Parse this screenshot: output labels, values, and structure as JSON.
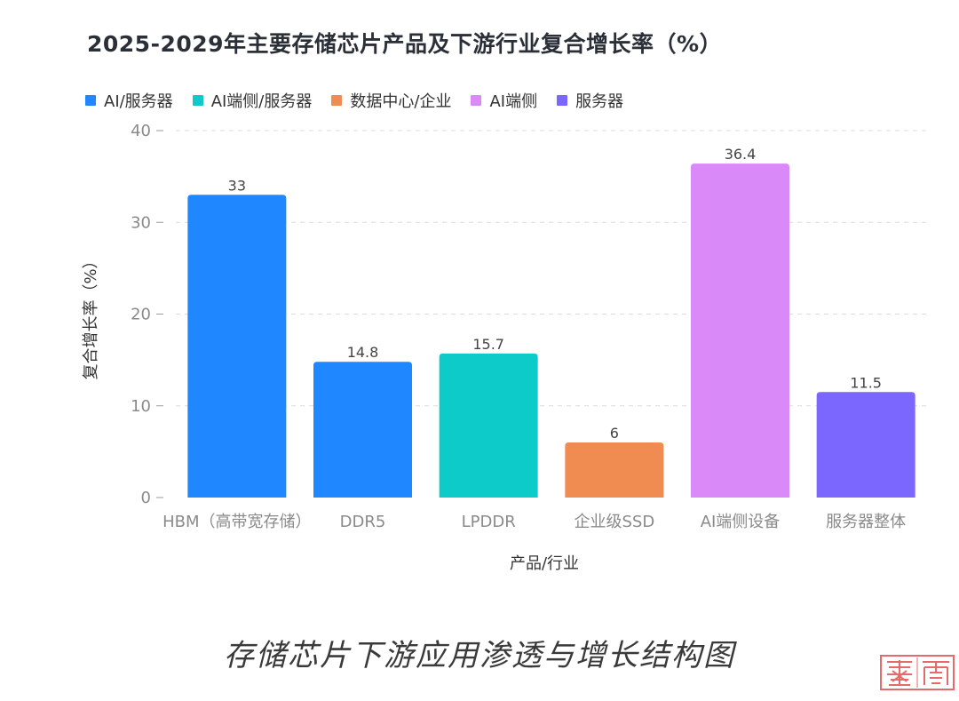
{
  "chart_data": {
    "type": "bar",
    "title": "2025-2029年主要存储芯片产品及下游行业复合增长率（%）",
    "xlabel": "产品/行业",
    "ylabel": "复合增长率（%）",
    "ylim": [
      0,
      40
    ],
    "yticks": [
      0,
      10,
      20,
      30,
      40
    ],
    "grid": true,
    "legend_position": "top-left",
    "categories": [
      "HBM（高带宽存储）",
      "DDR5",
      "LPDDR",
      "企业级SSD",
      "AI端侧设备",
      "服务器整体"
    ],
    "values": [
      33,
      14.8,
      15.7,
      6,
      36.4,
      11.5
    ],
    "value_labels": [
      "33",
      "14.8",
      "15.7",
      "6",
      "36.4",
      "11.5"
    ],
    "bar_groups": [
      0,
      0,
      1,
      2,
      3,
      4
    ],
    "legend": [
      {
        "name": "AI/服务器",
        "color": "#1f87ff"
      },
      {
        "name": "AI端侧/服务器",
        "color": "#0ccbc9"
      },
      {
        "name": "数据中心/企业",
        "color": "#f08b52"
      },
      {
        "name": "AI端侧",
        "color": "#d98af8"
      },
      {
        "name": "服务器",
        "color": "#7b66fe"
      }
    ]
  },
  "caption": "存储芯片下游应用渗透与增长结构图",
  "watermark_text": "楼宇"
}
